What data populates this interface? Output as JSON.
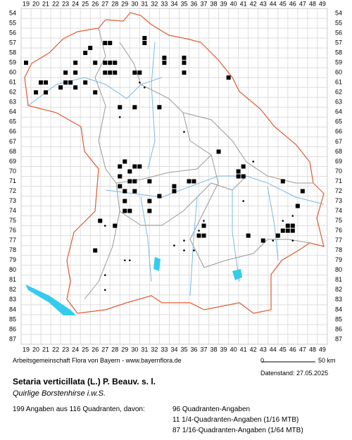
{
  "map": {
    "x_labels": [
      19,
      20,
      21,
      22,
      23,
      24,
      25,
      26,
      27,
      28,
      29,
      30,
      31,
      32,
      33,
      34,
      35,
      36,
      37,
      38,
      39,
      40,
      41,
      42,
      43,
      44,
      45,
      46,
      47,
      48,
      49
    ],
    "y_labels": [
      54,
      55,
      56,
      57,
      58,
      59,
      60,
      61,
      62,
      63,
      64,
      65,
      66,
      67,
      68,
      69,
      70,
      71,
      72,
      73,
      74,
      75,
      76,
      77,
      78,
      79,
      80,
      81,
      82,
      83,
      84,
      85,
      86,
      87
    ],
    "credit": "Arbeitsgemeinschaft Flora von Bayern - www.bayernflora.de",
    "scale_start": "0",
    "scale_end": "50 km",
    "date": "Datenstand: 27.05.2025",
    "title": "Setaria verticillata (L.) P. Beauv. s. l.",
    "subtitle": "Quirlige Borstenhirse i.w.S.",
    "summary": "199 Angaben aus 116 Quadranten, davon:",
    "counts": [
      "96 Quadranten-Angaben",
      "11 1/4-Quadranten-Angaben (1/16 MTB)",
      "87 1/16-Quadranten-Angaben (1/64 MTB)"
    ]
  }
}
